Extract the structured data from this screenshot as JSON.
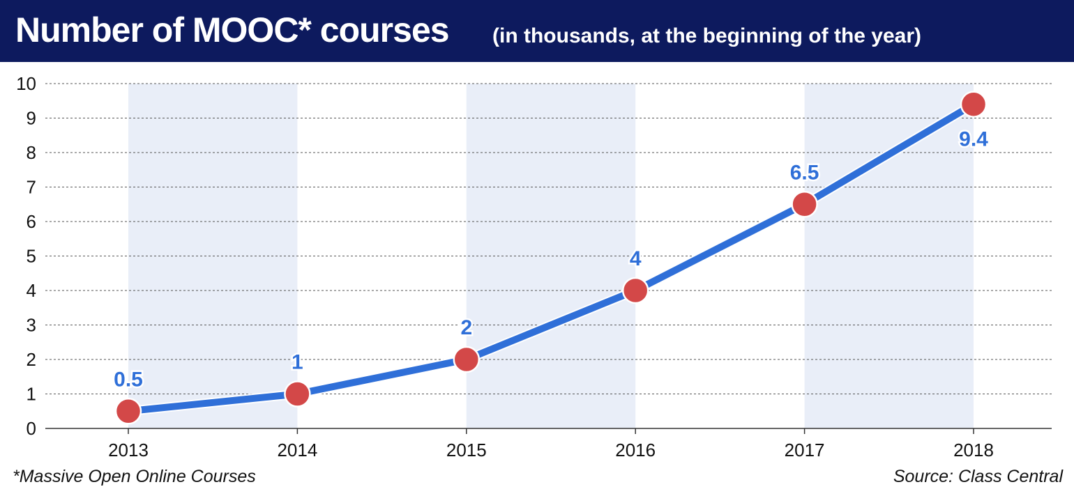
{
  "header": {
    "title": "Number of MOOC* courses",
    "subtitle": "(in thousands, at the beginning of the year)"
  },
  "footnote": "*Massive Open Online Courses",
  "source": "Source: Class Central",
  "colors": {
    "header_bg": "#0d1a5e",
    "line": "#2f6fd8",
    "marker": "#d34848",
    "label": "#2f6fd8",
    "band": "#e9eef8",
    "grid": "#555555"
  },
  "chart_data": {
    "type": "line",
    "title": "Number of MOOC* courses",
    "subtitle": "(in thousands, at the beginning of the year)",
    "categories": [
      "2013",
      "2014",
      "2015",
      "2016",
      "2017",
      "2018"
    ],
    "values": [
      0.5,
      1,
      2,
      4,
      6.5,
      9.4
    ],
    "data_labels": [
      "0.5",
      "1",
      "2",
      "4",
      "6.5",
      "9.4"
    ],
    "y_ticks": [
      "0",
      "1",
      "2",
      "3",
      "4",
      "5",
      "6",
      "7",
      "8",
      "9",
      "10"
    ],
    "ylim": [
      0,
      10
    ],
    "grid": true,
    "legend": false
  }
}
